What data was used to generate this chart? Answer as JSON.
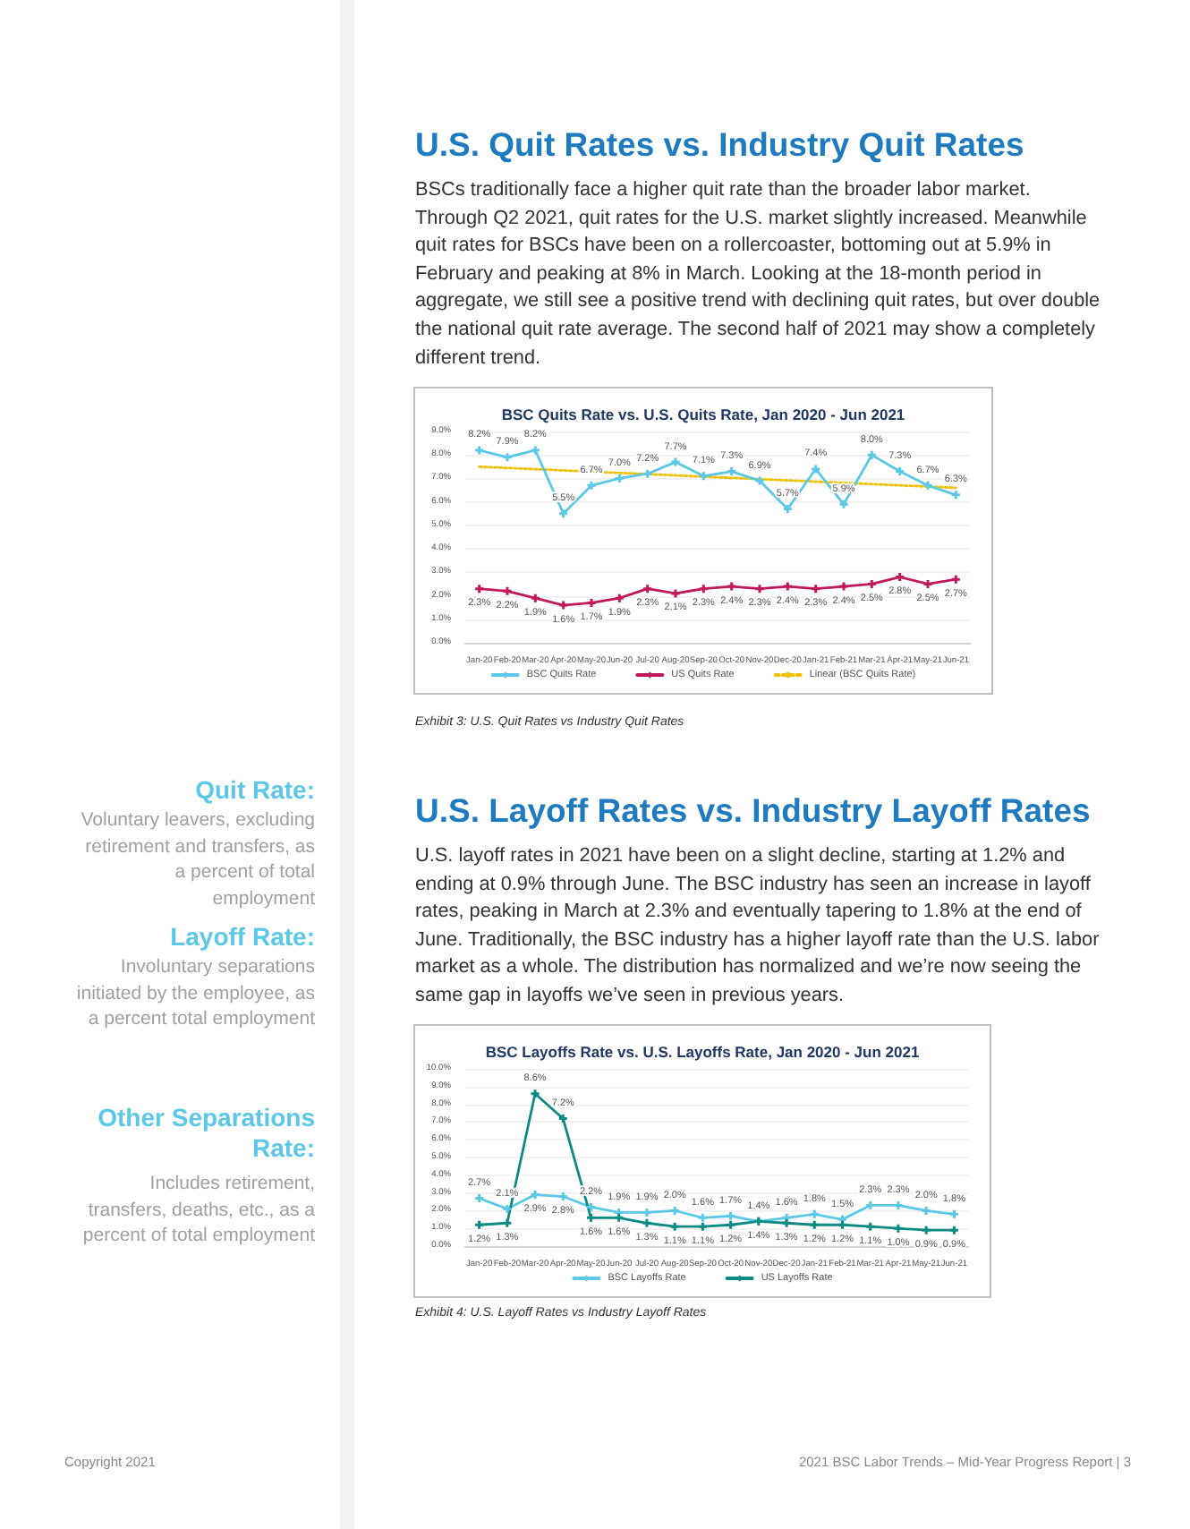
{
  "chart_data": [
    {
      "type": "line",
      "title": "BSC Quits Rate vs. U.S. Quits Rate, Jan 2020 - Jun 2021",
      "annotations": [
        "U.S. Quit Rates vs. Industry Quit Rates",
        "BSCs traditionally face a higher quit rate than the broader labor market. Through Q2 2021, quit rates for the U.S. market slightly increased. Meanwhile quit rates for BSCs have been on a rollercoaster, bottoming out at 5.9% in February and peaking at 8% in March. Looking at the 18-month period in aggregate, we still see a positive trend with declining quit rates, but over double the national quit rate average. The second half of 2021 may show a completely different trend.",
        "Exhibit 3: U.S. Quit Rates vs Industry Quit Rates",
        "Copyright 2021"
      ],
      "categories": [
        "Jan-20",
        "Feb-20",
        "Mar-20",
        "Apr-20",
        "May-20",
        "Jun-20",
        "Jul-20",
        "Aug-20",
        "Sep-20",
        "Oct-20",
        "Nov-20",
        "Dec-20",
        "Jan-21",
        "Feb-21",
        "Mar-21",
        "Apr-21",
        "May-21",
        "Jun-21"
      ],
      "series": [
        {
          "name": "BSC Quits Rate",
          "color": "#5bc8e8",
          "values": [
            8.2,
            7.9,
            8.2,
            5.5,
            6.7,
            7.0,
            7.2,
            7.7,
            7.1,
            7.3,
            6.9,
            5.7,
            7.4,
            5.9,
            8.0,
            7.3,
            6.7,
            6.3
          ],
          "value_labels": [
            "8.2%",
            "7.9%",
            "8.2%",
            "5.5%",
            "6.7%",
            "7.0%",
            "7.2%",
            "7.7%",
            "7.1%",
            "7.3%",
            "6.9%",
            "5.7%",
            "7.4%",
            "5.9%",
            "8.0%",
            "7.3%",
            "6.7%",
            "6.3%"
          ]
        },
        {
          "name": "US Quits Rate",
          "color": "#c2185b",
          "values": [
            2.3,
            2.2,
            1.9,
            1.6,
            1.7,
            1.9,
            2.3,
            2.1,
            2.3,
            2.4,
            2.3,
            2.4,
            2.3,
            2.4,
            2.5,
            2.8,
            2.5,
            2.7
          ],
          "value_labels": [
            "2.3%",
            "2.2%",
            "1.9%",
            "1.6%",
            "1.7%",
            "1.9%",
            "2.3%",
            "2.1%",
            "2.3%",
            "2.4%",
            "2.3%",
            "2.4%",
            "2.3%",
            "2.4%",
            "2.5%",
            "2.8%",
            "2.5%",
            "2.7%"
          ]
        },
        {
          "name": "Linear (BSC Quits Rate)",
          "color": "#f0c000",
          "type": "line",
          "x": [
            "Jan-20",
            "Jun-21"
          ],
          "values": [
            7.5,
            6.6
          ],
          "line_style": "dotted",
          "marker": "none"
        }
      ],
      "ylim": [
        0,
        9
      ],
      "yticks": [
        {
          "value": 0,
          "label": "0.0%"
        },
        {
          "value": 1,
          "label": "1.0%"
        },
        {
          "value": 2,
          "label": "2.0%"
        },
        {
          "value": 3,
          "label": "3.0%"
        },
        {
          "value": 4,
          "label": "4.0%"
        },
        {
          "value": 5,
          "label": "5.0%"
        },
        {
          "value": 6,
          "label": "6.0%"
        },
        {
          "value": 7,
          "label": "7.0%"
        },
        {
          "value": 8,
          "label": "8.0%"
        },
        {
          "value": 9,
          "label": "9.0%"
        }
      ],
      "grid": "y",
      "legend": "bottom",
      "marker": "cross",
      "line_style": "solid"
    },
    {
      "type": "line",
      "title": "BSC Layoffs Rate vs. U.S. Layoffs Rate, Jan 2020 - Jun 2021",
      "annotations": [
        "U.S. Layoff Rates vs. Industry Layoff Rates",
        "U.S. layoff rates in 2021 have been on a slight decline, starting at 1.2% and ending at 0.9% through June. The BSC industry has seen an increase in layoff rates, peaking in March at 2.3% and eventually tapering to 1.8% at the end of June. Traditionally, the BSC industry has a higher layoff rate than the U.S. labor market as a whole. The distribution has normalized and we’re now seeing the same gap in layoffs we’ve seen in previous years.",
        "Exhibit 4: U.S. Layoff Rates vs Industry Layoff Rates",
        "Quit Rate:",
        "Voluntary leavers, excluding retirement and transfers, as a percent of total employment",
        "Layoff Rate:",
        "Involuntary  separations initiated by the employee, as a percent total employment",
        "Other Separations Rate:",
        "Includes retirement, transfers, deaths, etc., as a percent of total employment",
        "2021 BSC Labor Trends – Mid-Year Progress Report | 3"
      ],
      "categories": [
        "Jan-20",
        "Feb-20",
        "Mar-20",
        "Apr-20",
        "May-20",
        "Jun-20",
        "Jul-20",
        "Aug-20",
        "Sep-20",
        "Oct-20",
        "Nov-20",
        "Dec-20",
        "Jan-21",
        "Feb-21",
        "Mar-21",
        "Apr-21",
        "May-21",
        "Jun-21"
      ],
      "series": [
        {
          "name": "BSC Layoffs Rate",
          "color": "#5bc8e8",
          "values": [
            2.7,
            2.1,
            2.9,
            2.8,
            2.2,
            1.9,
            1.9,
            2.0,
            1.6,
            1.7,
            1.4,
            1.6,
            1.8,
            1.5,
            2.3,
            2.3,
            2.0,
            1.8
          ],
          "value_labels": [
            "2.7%",
            "2.1%",
            "2.9%",
            "2.8%",
            "2.2%",
            "1.9%",
            "1.9%",
            "2.0%",
            "1.6%",
            "1.7%",
            "1.4%",
            "1.6%",
            "1.8%",
            "1.5%",
            "2.3%",
            "2.3%",
            "2.0%",
            "1.8%"
          ]
        },
        {
          "name": "US Layoffs Rate",
          "color": "#0e8a84",
          "values": [
            1.2,
            1.3,
            8.6,
            7.2,
            1.6,
            1.6,
            1.3,
            1.1,
            1.1,
            1.2,
            1.4,
            1.3,
            1.2,
            1.2,
            1.1,
            1.0,
            0.9,
            0.9
          ],
          "value_labels": [
            "1.2%",
            "1.3%",
            "8.6%",
            "7.2%",
            "1.6%",
            "1.6%",
            "1.3%",
            "1.1%",
            "1.1%",
            "1.2%",
            "1.4%",
            "1.3%",
            "1.2%",
            "1.2%",
            "1.1%",
            "1.0%",
            "0.9%",
            "0.9%"
          ]
        }
      ],
      "ylim": [
        0,
        10
      ],
      "yticks": [
        {
          "value": 0,
          "label": "0.0%"
        },
        {
          "value": 1,
          "label": "1.0%"
        },
        {
          "value": 2,
          "label": "2.0%"
        },
        {
          "value": 3,
          "label": "3.0%"
        },
        {
          "value": 4,
          "label": "4.0%"
        },
        {
          "value": 5,
          "label": "5.0%"
        },
        {
          "value": 6,
          "label": "6.0%"
        },
        {
          "value": 7,
          "label": "7.0%"
        },
        {
          "value": 8,
          "label": "8.0%"
        },
        {
          "value": 9,
          "label": "9.0%"
        },
        {
          "value": 10,
          "label": "10.0%"
        }
      ],
      "grid": "y",
      "legend": "bottom",
      "marker": "cross",
      "line_style": "solid"
    }
  ]
}
